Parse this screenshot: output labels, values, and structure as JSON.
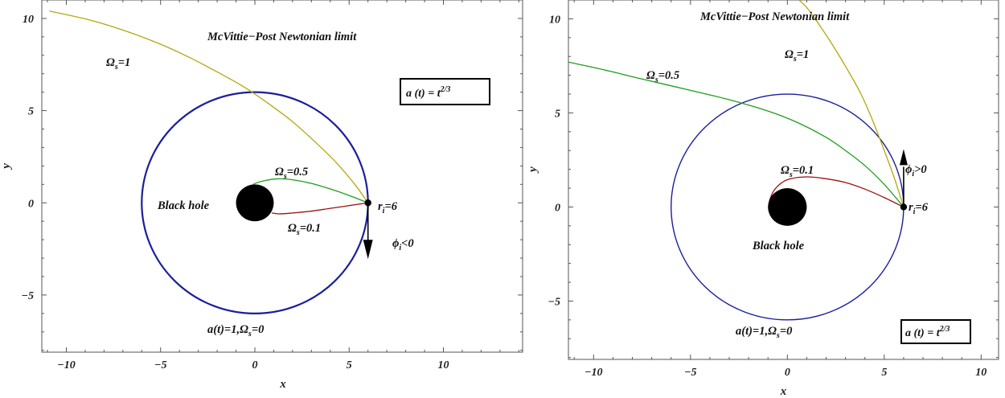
{
  "colors": {
    "circle": "#1a1f9c",
    "omega1": "#b5a70f",
    "omega05": "#1e9e1e",
    "omega01": "#9b1111",
    "frame": "#555555",
    "blackhole": "#000000"
  },
  "chart_data": [
    {
      "type": "line",
      "title": "McVittie−Post Newtonian limit",
      "xlabel": "x",
      "ylabel": "y",
      "xlim": [
        -11.3,
        14.2
      ],
      "ylim": [
        -8.1,
        11
      ],
      "xticks": [
        "−10",
        "−5",
        "0",
        "5",
        "10"
      ],
      "yticks": [
        "−5",
        "0",
        "5",
        "10"
      ],
      "scale_box": "a (t) = t",
      "scale_box_exp": "2/3",
      "blackhole_label": "Black hole",
      "blackhole_radius": 1,
      "start_label": "r",
      "start_label_sub": "i",
      "start_label_tail": "=6",
      "start_point": [
        6,
        0
      ],
      "arrow_label_sym": "ϕ",
      "arrow_label_tail": "<0",
      "arrow_direction": "down",
      "series": [
        {
          "name": "a(t)=1,Ωs=0",
          "label": "a(t)=1,Ω",
          "label_sub": "s",
          "label_tail": "=0",
          "kind": "circle",
          "radius": 6
        },
        {
          "name": "Ωs=1",
          "label": "Ω",
          "label_sub": "s",
          "label_tail": "=1",
          "x": [
            6,
            5.3,
            4.3,
            3.2,
            2.0,
            0.7,
            -0.6,
            -2.0,
            -3.5,
            -5.0,
            -6.8,
            -8.7,
            -10.9
          ],
          "y": [
            0,
            1.0,
            2.2,
            3.3,
            4.4,
            5.4,
            6.3,
            7.1,
            7.9,
            8.6,
            9.3,
            9.9,
            10.4
          ]
        },
        {
          "name": "Ωs=0.5",
          "label": "Ω",
          "label_sub": "s",
          "label_tail": "=0.5",
          "x": [
            6,
            5.0,
            4.0,
            3.0,
            2.0,
            1.2,
            0.5,
            0.0,
            -0.1
          ],
          "y": [
            0,
            0.4,
            0.75,
            1.05,
            1.25,
            1.3,
            1.2,
            1.05,
            0.95
          ]
        },
        {
          "name": "Ωs=0.1",
          "label": "Ω",
          "label_sub": "s",
          "label_tail": "=0.1",
          "x": [
            6,
            5.0,
            4.0,
            3.0,
            2.0,
            1.3,
            0.9
          ],
          "y": [
            0,
            -0.15,
            -0.3,
            -0.45,
            -0.55,
            -0.6,
            -0.55
          ]
        }
      ]
    },
    {
      "type": "line",
      "title": "McVittie−Post Newtonian limit",
      "xlabel": "x",
      "ylabel": "y",
      "xlim": [
        -11.3,
        10.9
      ],
      "ylim": [
        -8.1,
        11
      ],
      "xticks": [
        "−10",
        "−5",
        "0",
        "5",
        "10"
      ],
      "yticks": [
        "−5",
        "0",
        "5",
        "10"
      ],
      "scale_box": "a (t) = t",
      "scale_box_exp": "2/3",
      "blackhole_label": "Black hole",
      "blackhole_radius": 1,
      "start_label": "r",
      "start_label_sub": "i",
      "start_label_tail": "=6",
      "start_point": [
        6,
        0
      ],
      "arrow_label_sym": "ϕ",
      "arrow_label_tail": ">0",
      "arrow_direction": "up",
      "series": [
        {
          "name": "a(t)=1,Ωs=0",
          "label": "a(t)=1,Ω",
          "label_sub": "s",
          "label_tail": "=0",
          "kind": "circle",
          "radius": 6
        },
        {
          "name": "Ωs=1",
          "label": "Ω",
          "label_sub": "s",
          "label_tail": "=1",
          "x": [
            6,
            5.5,
            5.0,
            4.4,
            3.8,
            3.1,
            2.4,
            1.7,
            1.0,
            0.6
          ],
          "y": [
            0,
            1.6,
            3.0,
            4.6,
            6.0,
            7.3,
            8.5,
            9.6,
            10.6,
            11.0
          ]
        },
        {
          "name": "Ωs=0.5",
          "label": "Ω",
          "label_sub": "s",
          "label_tail": "=0.5",
          "x": [
            6,
            5.0,
            4.0,
            3.0,
            2.0,
            0.5,
            -1.0,
            -3.0,
            -5.0,
            -7.5,
            -9.5,
            -11.3
          ],
          "y": [
            0,
            1.2,
            2.2,
            3.0,
            3.7,
            4.5,
            5.1,
            5.7,
            6.2,
            6.8,
            7.3,
            7.7
          ]
        },
        {
          "name": "Ωs=0.1",
          "label": "Ω",
          "label_sub": "s",
          "label_tail": "=0.1",
          "x": [
            6,
            5.0,
            4.0,
            3.0,
            2.0,
            1.0,
            0.0,
            -0.6,
            -0.9,
            -0.95,
            -0.7
          ],
          "y": [
            0,
            0.5,
            0.95,
            1.3,
            1.5,
            1.6,
            1.45,
            1.0,
            0.4,
            -0.2,
            -0.45
          ]
        }
      ]
    }
  ]
}
